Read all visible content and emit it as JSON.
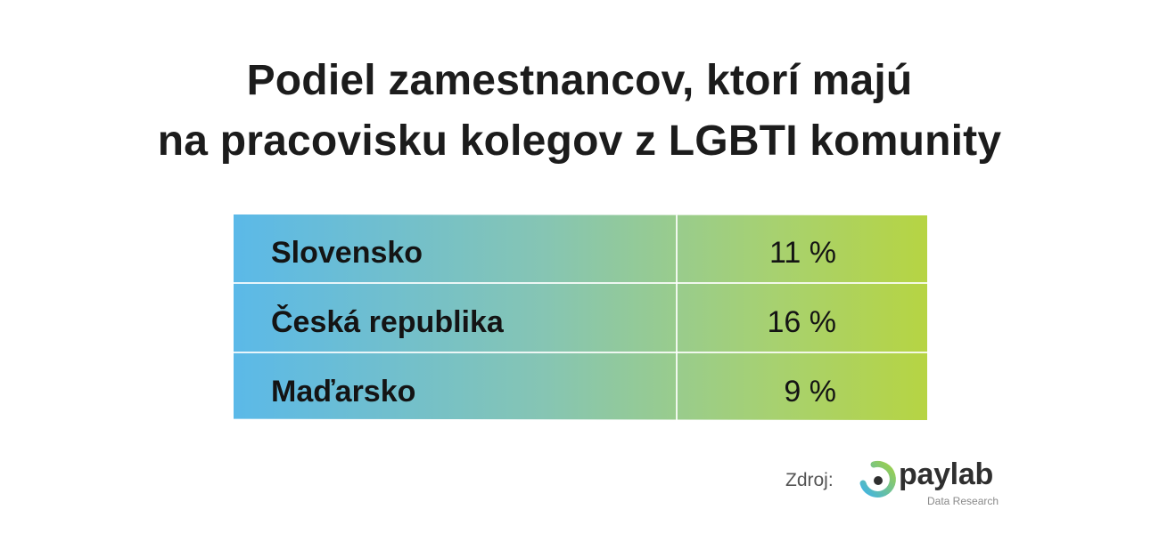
{
  "title": {
    "line1": "Podiel zamestnancov, ktorí majú",
    "line2": "na pracovisku kolegov z LGBTI komunity"
  },
  "chart_data": {
    "type": "table",
    "title": "Podiel zamestnancov, ktorí majú na pracovisku kolegov z LGBTI komunity",
    "unit": "%",
    "rows": [
      {
        "label": "Slovensko",
        "value": 11,
        "display": "11 %"
      },
      {
        "label": "Česká republika",
        "value": 16,
        "display": "16 %"
      },
      {
        "label": "Maďarsko",
        "value": 9,
        "display": "9 %"
      }
    ]
  },
  "colors": {
    "gradient_start": "#5bb9e8",
    "gradient_end": "#b6d443",
    "title_text": "#1c1c1c"
  },
  "footer": {
    "source_label": "Zdroj:",
    "brand_name": "paylab",
    "brand_sub": "Data Research",
    "logo_icon": "paylab-ring-logo"
  }
}
